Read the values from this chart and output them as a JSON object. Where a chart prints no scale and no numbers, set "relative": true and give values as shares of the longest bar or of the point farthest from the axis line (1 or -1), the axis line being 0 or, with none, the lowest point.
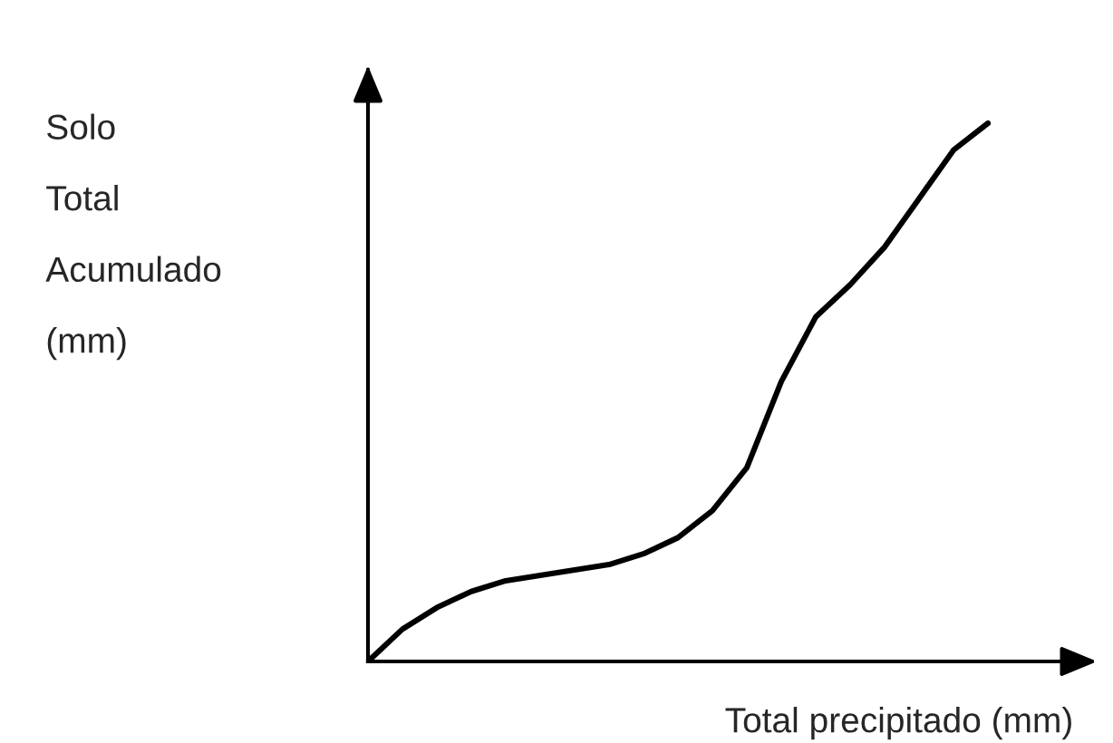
{
  "chart_data": {
    "type": "line",
    "relative": true,
    "xlabel": "Total precipitado (mm)",
    "ylabel": "Solo\nTotal\nAcumulado\n(mm)",
    "legend": false,
    "marker": "none",
    "line_style": "solid",
    "categories": [
      null,
      null,
      null,
      null,
      null,
      null,
      null,
      null,
      null,
      null,
      null,
      null,
      null,
      null,
      null,
      null,
      null,
      null,
      null
    ],
    "series": [
      {
        "color": "#000000",
        "values": [
          0,
          0.06,
          0.1,
          0.13,
          0.15,
          0.16,
          0.17,
          0.18,
          0.2,
          0.23,
          0.28,
          0.36,
          0.52,
          0.64,
          0.7,
          0.77,
          0.86,
          0.95,
          1.0
        ]
      }
    ]
  }
}
